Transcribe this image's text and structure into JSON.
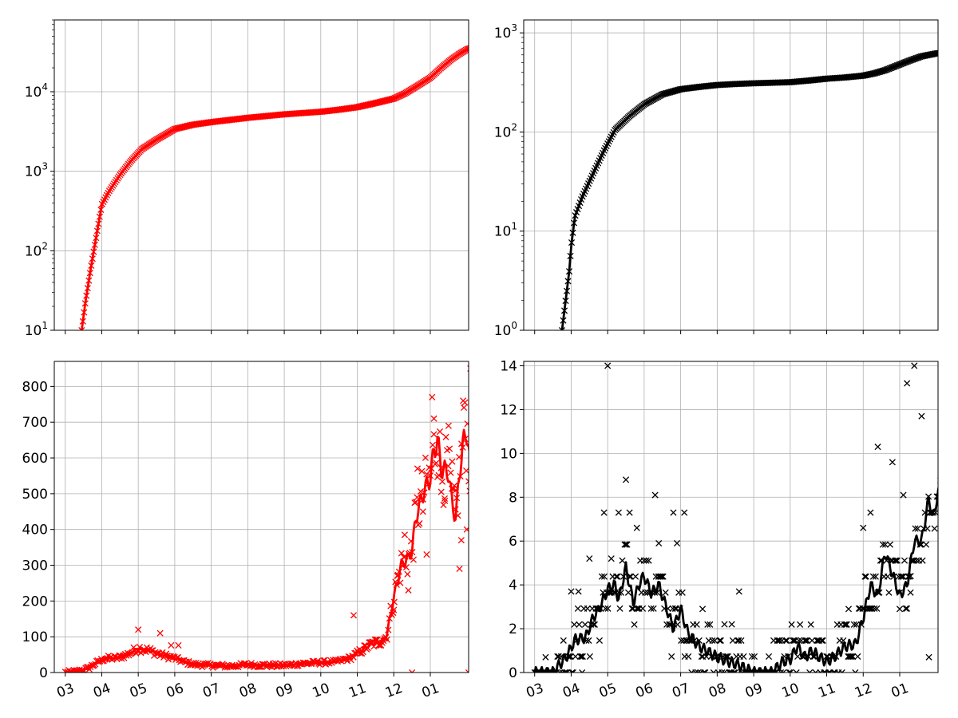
{
  "colors": {
    "cases": "#ff0000",
    "deaths": "#000000"
  },
  "x_tick_labels": [
    "03",
    "04",
    "05",
    "06",
    "07",
    "08",
    "09",
    "10",
    "11",
    "12",
    "01"
  ],
  "chart_data": [
    {
      "id": "cumulative-cases",
      "type": "scatter",
      "title": "",
      "xlabel": "",
      "ylabel": "",
      "yscale": "log",
      "ylim": [
        10,
        80000
      ],
      "xlim": [
        -0.3,
        11.05
      ],
      "x_unit": "months since 1 March",
      "ytick_values": [
        10,
        100,
        1000,
        10000
      ],
      "ytick_labels": [
        "10^1",
        "10^2",
        "10^3",
        "10^4"
      ],
      "anchors": [
        [
          0.45,
          10
        ],
        [
          0.55,
          22
        ],
        [
          0.7,
          60
        ],
        [
          0.85,
          150
        ],
        [
          1.0,
          380
        ],
        [
          1.2,
          560
        ],
        [
          1.5,
          900
        ],
        [
          1.8,
          1350
        ],
        [
          2.1,
          1900
        ],
        [
          2.5,
          2500
        ],
        [
          3.0,
          3400
        ],
        [
          3.5,
          3850
        ],
        [
          4.0,
          4150
        ],
        [
          5.0,
          4700
        ],
        [
          6.0,
          5200
        ],
        [
          7.0,
          5600
        ],
        [
          7.5,
          5950
        ],
        [
          8.0,
          6400
        ],
        [
          8.5,
          7200
        ],
        [
          9.0,
          8200
        ],
        [
          9.3,
          9500
        ],
        [
          9.6,
          11500
        ],
        [
          10.0,
          15000
        ],
        [
          10.3,
          20000
        ],
        [
          10.6,
          26000
        ],
        [
          10.8,
          30000
        ],
        [
          11.0,
          34000
        ],
        [
          11.3,
          38000
        ]
      ],
      "points": "daily from early March to 11 January (anchors interpolated)"
    },
    {
      "id": "cumulative-deaths",
      "type": "scatter",
      "title": "",
      "xlabel": "",
      "ylabel": "",
      "yscale": "log",
      "ylim": [
        1,
        1350
      ],
      "xlim": [
        -0.3,
        11.05
      ],
      "ytick_values": [
        1,
        10,
        100,
        1000
      ],
      "ytick_labels": [
        "10^0",
        "10^1",
        "10^2",
        "10^3"
      ],
      "anchors": [
        [
          0.75,
          1
        ],
        [
          0.85,
          2
        ],
        [
          0.95,
          4
        ],
        [
          1.0,
          7
        ],
        [
          1.1,
          14
        ],
        [
          1.3,
          22
        ],
        [
          1.6,
          38
        ],
        [
          1.9,
          65
        ],
        [
          2.2,
          105
        ],
        [
          2.6,
          145
        ],
        [
          3.0,
          190
        ],
        [
          3.5,
          240
        ],
        [
          4.0,
          270
        ],
        [
          4.5,
          285
        ],
        [
          5.0,
          298
        ],
        [
          5.5,
          305
        ],
        [
          6.0,
          310
        ],
        [
          7.0,
          318
        ],
        [
          7.5,
          330
        ],
        [
          8.0,
          345
        ],
        [
          8.5,
          355
        ],
        [
          9.0,
          370
        ],
        [
          9.3,
          390
        ],
        [
          9.6,
          420
        ],
        [
          10.0,
          480
        ],
        [
          10.3,
          530
        ],
        [
          10.6,
          580
        ],
        [
          11.0,
          620
        ],
        [
          11.3,
          640
        ]
      ]
    },
    {
      "id": "daily-cases",
      "type": "scatter+line",
      "title": "",
      "xlabel": "",
      "ylabel": "",
      "yscale": "linear",
      "ylim": [
        0,
        870
      ],
      "xlim": [
        -0.3,
        11.05
      ],
      "ytick_values": [
        0,
        100,
        200,
        300,
        400,
        500,
        600,
        700,
        800
      ],
      "ytick_labels": [
        "0",
        "100",
        "200",
        "300",
        "400",
        "500",
        "600",
        "700",
        "800"
      ],
      "trend_anchors": [
        [
          0,
          0
        ],
        [
          0.3,
          2
        ],
        [
          0.6,
          10
        ],
        [
          0.9,
          30
        ],
        [
          1.1,
          40
        ],
        [
          1.4,
          40
        ],
        [
          1.7,
          50
        ],
        [
          2.0,
          68
        ],
        [
          2.3,
          62
        ],
        [
          2.6,
          50
        ],
        [
          3.0,
          40
        ],
        [
          3.3,
          28
        ],
        [
          3.6,
          22
        ],
        [
          4.0,
          20
        ],
        [
          4.5,
          18
        ],
        [
          5.0,
          22
        ],
        [
          5.5,
          20
        ],
        [
          6.0,
          20
        ],
        [
          6.5,
          25
        ],
        [
          7.0,
          28
        ],
        [
          7.4,
          30
        ],
        [
          7.8,
          40
        ],
        [
          8.1,
          60
        ],
        [
          8.4,
          80
        ],
        [
          8.6,
          85
        ],
        [
          8.8,
          100
        ],
        [
          9.0,
          210
        ],
        [
          9.2,
          300
        ],
        [
          9.4,
          320
        ],
        [
          9.5,
          340
        ],
        [
          9.6,
          430
        ],
        [
          9.8,
          500
        ],
        [
          10.0,
          545
        ],
        [
          10.1,
          620
        ],
        [
          10.2,
          650
        ],
        [
          10.3,
          570
        ],
        [
          10.5,
          560
        ],
        [
          10.6,
          470
        ],
        [
          10.7,
          430
        ],
        [
          10.8,
          560
        ],
        [
          10.9,
          640
        ],
        [
          11.0,
          680
        ],
        [
          11.1,
          560
        ],
        [
          11.2,
          690
        ],
        [
          11.3,
          520
        ]
      ],
      "outliers": [
        [
          2.0,
          120
        ],
        [
          2.6,
          110
        ],
        [
          2.9,
          76
        ],
        [
          3.1,
          76
        ],
        [
          6.9,
          30
        ],
        [
          7.9,
          160
        ],
        [
          9.0,
          175
        ],
        [
          9.1,
          270
        ],
        [
          9.3,
          385
        ],
        [
          9.4,
          230
        ],
        [
          9.5,
          0
        ],
        [
          9.65,
          570
        ],
        [
          9.8,
          450
        ],
        [
          9.9,
          330
        ],
        [
          10.05,
          770
        ],
        [
          10.1,
          710
        ],
        [
          10.2,
          610
        ],
        [
          10.3,
          505
        ],
        [
          10.4,
          480
        ],
        [
          10.5,
          690
        ],
        [
          10.6,
          590
        ],
        [
          10.7,
          510
        ],
        [
          10.8,
          290
        ],
        [
          10.85,
          370
        ],
        [
          10.9,
          760
        ],
        [
          10.95,
          755
        ],
        [
          11.0,
          400
        ],
        [
          11.05,
          0
        ],
        [
          11.1,
          850
        ],
        [
          11.15,
          490
        ],
        [
          11.25,
          310
        ],
        [
          11.3,
          655
        ],
        [
          11.35,
          535
        ]
      ]
    },
    {
      "id": "daily-deaths",
      "type": "scatter+line",
      "title": "",
      "xlabel": "",
      "ylabel": "",
      "yscale": "linear",
      "ylim": [
        0,
        14.2
      ],
      "xlim": [
        -0.3,
        11.05
      ],
      "ytick_values": [
        0,
        2,
        4,
        6,
        8,
        10,
        12,
        14
      ],
      "ytick_labels": [
        "0",
        "2",
        "4",
        "6",
        "8",
        "10",
        "12",
        "14"
      ],
      "trend_anchors": [
        [
          0,
          0
        ],
        [
          0.5,
          0
        ],
        [
          0.7,
          0.4
        ],
        [
          0.9,
          0.8
        ],
        [
          1.1,
          1.5
        ],
        [
          1.4,
          1.6
        ],
        [
          1.6,
          2.5
        ],
        [
          1.8,
          3.0
        ],
        [
          2.0,
          3.8
        ],
        [
          2.2,
          4.0
        ],
        [
          2.3,
          3.3
        ],
        [
          2.5,
          4.8
        ],
        [
          2.7,
          3.2
        ],
        [
          2.9,
          4.2
        ],
        [
          3.0,
          4.4
        ],
        [
          3.2,
          3.6
        ],
        [
          3.4,
          4.0
        ],
        [
          3.6,
          3.0
        ],
        [
          3.8,
          2.0
        ],
        [
          4.0,
          2.9
        ],
        [
          4.2,
          1.8
        ],
        [
          4.5,
          1.2
        ],
        [
          5.0,
          0.7
        ],
        [
          5.5,
          0.4
        ],
        [
          6.0,
          0.0
        ],
        [
          6.5,
          0.0
        ],
        [
          6.8,
          0.5
        ],
        [
          7.0,
          0.6
        ],
        [
          7.2,
          1.2
        ],
        [
          7.4,
          0.7
        ],
        [
          7.6,
          1.0
        ],
        [
          7.8,
          0.7
        ],
        [
          8.0,
          0.5
        ],
        [
          8.2,
          0.7
        ],
        [
          8.5,
          1.2
        ],
        [
          8.8,
          1.3
        ],
        [
          9.0,
          2.5
        ],
        [
          9.2,
          4.0
        ],
        [
          9.4,
          3.5
        ],
        [
          9.6,
          5.5
        ],
        [
          9.8,
          4.5
        ],
        [
          10.0,
          3.5
        ],
        [
          10.2,
          4.0
        ],
        [
          10.4,
          6.0
        ],
        [
          10.6,
          6.0
        ],
        [
          10.8,
          8.0
        ],
        [
          10.9,
          7.0
        ],
        [
          11.1,
          8.5
        ],
        [
          11.2,
          11.5
        ],
        [
          11.3,
          10.0
        ]
      ],
      "outliers": [
        [
          0.3,
          0.7
        ],
        [
          1.0,
          3.7
        ],
        [
          1.2,
          3.7
        ],
        [
          1.5,
          5.2
        ],
        [
          2.1,
          5.2
        ],
        [
          2.3,
          7.3
        ],
        [
          2.5,
          8.8
        ],
        [
          2.6,
          7.3
        ],
        [
          2.8,
          6.6
        ],
        [
          3.3,
          8.1
        ],
        [
          3.4,
          5.9
        ],
        [
          3.8,
          7.3
        ],
        [
          3.9,
          5.9
        ],
        [
          4.6,
          2.9
        ],
        [
          5.2,
          2.2
        ],
        [
          5.4,
          2.2
        ],
        [
          5.6,
          3.7
        ],
        [
          8.6,
          2.9
        ],
        [
          9.4,
          10.3
        ],
        [
          9.8,
          9.6
        ],
        [
          10.0,
          2.9
        ],
        [
          10.2,
          13.2
        ],
        [
          10.4,
          14.0
        ],
        [
          10.6,
          11.7
        ],
        [
          10.8,
          0.7
        ],
        [
          9.2,
          7.3
        ],
        [
          9.0,
          6.6
        ],
        [
          2.0,
          14.0
        ],
        [
          1.9,
          7.3
        ],
        [
          1.3,
          0.0
        ],
        [
          4.1,
          7.3
        ],
        [
          4.3,
          0.0
        ],
        [
          10.1,
          8.1
        ],
        [
          10.3,
          4.4
        ]
      ]
    }
  ]
}
